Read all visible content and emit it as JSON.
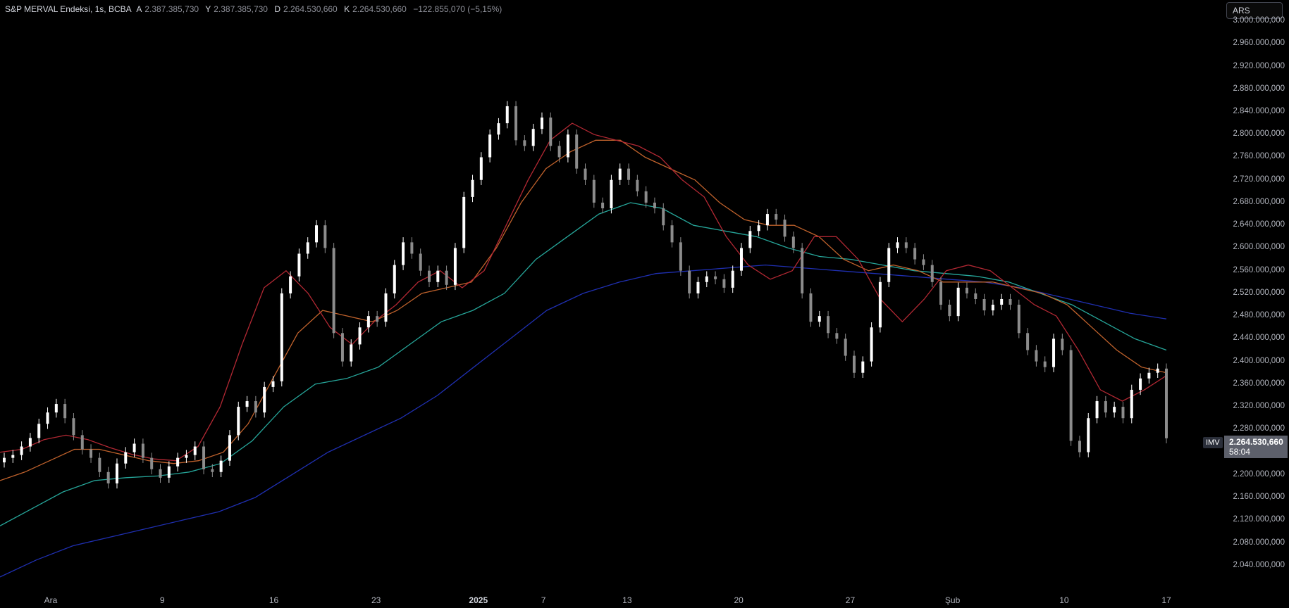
{
  "legend": {
    "title": "S&P MERVAL Endeksi, 1s, BCBA",
    "a_label": "A",
    "a_value": "2.387.385,730",
    "y_label": "Y",
    "y_value": "2.387.385,730",
    "d_label": "D",
    "d_value": "2.264.530,660",
    "k_label": "K",
    "k_value": "2.264.530,660",
    "change": "−122.855,070 (−5,15%)"
  },
  "currency": "ARS",
  "price_tag": {
    "symbol": "IMV",
    "price": "2.264.530,660",
    "countdown": "58:04"
  },
  "colors": {
    "background": "#000000",
    "candle": "#ffffff",
    "ma_red": "#b22833",
    "ma_orange": "#c0622c",
    "ma_teal": "#26a69a",
    "ma_blue": "#1f2fb0"
  },
  "chart_data": {
    "type": "candlestick",
    "title": "S&P MERVAL Endeksi",
    "y_ticks": [
      "3.000.000,000",
      "2.960.000,000",
      "2.920.000,000",
      "2.880.000,000",
      "2.840.000,000",
      "2.800.000,000",
      "2.760.000,000",
      "2.720.000,000",
      "2.680.000,000",
      "2.640.000,000",
      "2.600.000,000",
      "2.560.000,000",
      "2.520.000,000",
      "2.480.000,000",
      "2.440.000,000",
      "2.400.000,000",
      "2.360.000,000",
      "2.320.000,000",
      "2.280.000,000",
      "2.240.000,000",
      "2.200.000,000",
      "2.160.000,000",
      "2.120.000,000",
      "2.080.000,000",
      "2.040.000,000"
    ],
    "y_tick_values": [
      3000000,
      2960000,
      2920000,
      2880000,
      2840000,
      2800000,
      2760000,
      2720000,
      2680000,
      2640000,
      2600000,
      2560000,
      2520000,
      2480000,
      2440000,
      2400000,
      2360000,
      2320000,
      2280000,
      2240000,
      2200000,
      2160000,
      2120000,
      2080000,
      2040000
    ],
    "ylim": [
      2000000,
      3010000
    ],
    "x_ticks": [
      {
        "label": "Ara",
        "bar": 5,
        "bold": false
      },
      {
        "label": "9",
        "bar": 17,
        "bold": false
      },
      {
        "label": "16",
        "bar": 29,
        "bold": false
      },
      {
        "label": "23",
        "bar": 40,
        "bold": false
      },
      {
        "label": "2025",
        "bar": 51,
        "bold": true
      },
      {
        "label": "7",
        "bar": 58,
        "bold": false
      },
      {
        "label": "13",
        "bar": 67,
        "bold": false
      },
      {
        "label": "20",
        "bar": 79,
        "bold": false
      },
      {
        "label": "27",
        "bar": 91,
        "bold": false
      },
      {
        "label": "Şub",
        "bar": 102,
        "bold": false
      },
      {
        "label": "10",
        "bar": 114,
        "bold": false
      },
      {
        "label": "17",
        "bar": 125,
        "bold": false
      }
    ],
    "closes": [
      2230000,
      2235000,
      2250000,
      2265000,
      2290000,
      2310000,
      2325000,
      2300000,
      2270000,
      2245000,
      2230000,
      2205000,
      2185000,
      2220000,
      2240000,
      2255000,
      2230000,
      2210000,
      2195000,
      2215000,
      2230000,
      2235000,
      2250000,
      2210000,
      2205000,
      2225000,
      2270000,
      2320000,
      2330000,
      2310000,
      2355000,
      2365000,
      2520000,
      2550000,
      2590000,
      2610000,
      2640000,
      2600000,
      2450000,
      2400000,
      2430000,
      2460000,
      2480000,
      2470000,
      2520000,
      2570000,
      2610000,
      2590000,
      2560000,
      2540000,
      2560000,
      2535000,
      2600000,
      2690000,
      2720000,
      2760000,
      2800000,
      2820000,
      2850000,
      2790000,
      2780000,
      2810000,
      2830000,
      2780000,
      2760000,
      2800000,
      2740000,
      2720000,
      2680000,
      2670000,
      2720000,
      2740000,
      2720000,
      2700000,
      2680000,
      2670000,
      2640000,
      2610000,
      2560000,
      2520000,
      2540000,
      2550000,
      2545000,
      2530000,
      2560000,
      2600000,
      2630000,
      2640000,
      2660000,
      2650000,
      2620000,
      2600000,
      2520000,
      2470000,
      2480000,
      2450000,
      2440000,
      2410000,
      2380000,
      2400000,
      2460000,
      2540000,
      2600000,
      2610000,
      2600000,
      2580000,
      2570000,
      2540000,
      2500000,
      2480000,
      2530000,
      2520000,
      2510000,
      2490000,
      2500000,
      2510000,
      2500000,
      2450000,
      2420000,
      2400000,
      2390000,
      2440000,
      2420000,
      2260000,
      2240000,
      2300000,
      2330000,
      2310000,
      2320000,
      2300000,
      2350000,
      2370000,
      2380000,
      2387386,
      2264531
    ],
    "ma_red": [
      2240000,
      2245000,
      2262000,
      2270000,
      2262000,
      2248000,
      2236000,
      2228000,
      2225000,
      2250000,
      2320000,
      2430000,
      2530000,
      2560000,
      2520000,
      2460000,
      2430000,
      2470000,
      2500000,
      2540000,
      2560000,
      2530000,
      2560000,
      2640000,
      2720000,
      2790000,
      2820000,
      2800000,
      2790000,
      2780000,
      2760000,
      2720000,
      2690000,
      2620000,
      2570000,
      2545000,
      2560000,
      2620000,
      2620000,
      2580000,
      2510000,
      2470000,
      2510000,
      2560000,
      2570000,
      2560000,
      2530000,
      2500000,
      2480000,
      2420000,
      2350000,
      2330000,
      2350000,
      2375000
    ],
    "ma_orange": [
      2190000,
      2205000,
      2225000,
      2245000,
      2245000,
      2235000,
      2225000,
      2220000,
      2225000,
      2240000,
      2290000,
      2370000,
      2450000,
      2490000,
      2480000,
      2470000,
      2490000,
      2520000,
      2530000,
      2540000,
      2600000,
      2680000,
      2740000,
      2770000,
      2790000,
      2790000,
      2760000,
      2740000,
      2720000,
      2680000,
      2650000,
      2640000,
      2640000,
      2620000,
      2580000,
      2560000,
      2570000,
      2560000,
      2540000,
      2540000,
      2540000,
      2530000,
      2520000,
      2500000,
      2460000,
      2420000,
      2390000,
      2380000
    ],
    "ma_teal": [
      2110000,
      2140000,
      2170000,
      2190000,
      2195000,
      2198000,
      2205000,
      2220000,
      2260000,
      2320000,
      2360000,
      2370000,
      2390000,
      2430000,
      2470000,
      2490000,
      2520000,
      2580000,
      2620000,
      2660000,
      2680000,
      2670000,
      2640000,
      2630000,
      2620000,
      2600000,
      2585000,
      2580000,
      2570000,
      2560000,
      2555000,
      2550000,
      2540000,
      2520000,
      2500000,
      2470000,
      2440000,
      2420000
    ],
    "ma_blue": [
      2020000,
      2050000,
      2075000,
      2090000,
      2105000,
      2120000,
      2135000,
      2160000,
      2200000,
      2240000,
      2270000,
      2300000,
      2340000,
      2390000,
      2440000,
      2490000,
      2520000,
      2540000,
      2555000,
      2560000,
      2565000,
      2570000,
      2565000,
      2560000,
      2555000,
      2550000,
      2545000,
      2540000,
      2530000,
      2515000,
      2500000,
      2485000,
      2475000
    ]
  }
}
